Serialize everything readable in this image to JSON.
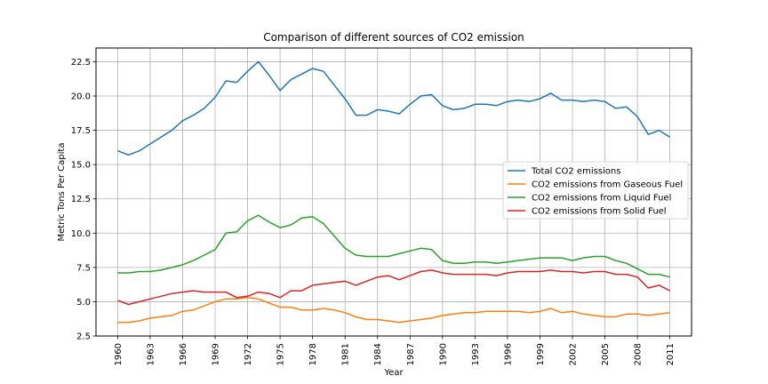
{
  "chart_data": {
    "type": "line",
    "title": "Comparison of different sources of CO2 emission",
    "xlabel": "Year",
    "ylabel": "Metric Tons Per Capita",
    "xlim": [
      1958,
      2013
    ],
    "ylim": [
      2.5,
      23.5
    ],
    "xticks": [
      1960,
      1963,
      1966,
      1969,
      1972,
      1975,
      1978,
      1981,
      1984,
      1987,
      1990,
      1993,
      1996,
      1999,
      2002,
      2005,
      2008,
      2011
    ],
    "yticks": [
      2.5,
      5.0,
      7.5,
      10.0,
      12.5,
      15.0,
      17.5,
      20.0,
      22.5
    ],
    "grid": true,
    "legend_position": "center-right",
    "x": [
      1960,
      1961,
      1962,
      1963,
      1964,
      1965,
      1966,
      1967,
      1968,
      1969,
      1970,
      1971,
      1972,
      1973,
      1974,
      1975,
      1976,
      1977,
      1978,
      1979,
      1980,
      1981,
      1982,
      1983,
      1984,
      1985,
      1986,
      1987,
      1988,
      1989,
      1990,
      1991,
      1992,
      1993,
      1994,
      1995,
      1996,
      1997,
      1998,
      1999,
      2000,
      2001,
      2002,
      2003,
      2004,
      2005,
      2006,
      2007,
      2008,
      2009,
      2010,
      2011
    ],
    "series": [
      {
        "name": "Total CO2 emissions",
        "color": "#1f77b4",
        "values": [
          16.0,
          15.7,
          16.0,
          16.5,
          17.0,
          17.5,
          18.2,
          18.6,
          19.1,
          19.9,
          21.1,
          21.0,
          21.8,
          22.5,
          21.5,
          20.4,
          21.2,
          21.6,
          22.0,
          21.8,
          20.8,
          19.8,
          18.6,
          18.6,
          19.0,
          18.9,
          18.7,
          19.4,
          20.0,
          20.1,
          19.3,
          19.0,
          19.1,
          19.4,
          19.4,
          19.3,
          19.6,
          19.7,
          19.6,
          19.8,
          20.2,
          19.7,
          19.7,
          19.6,
          19.7,
          19.6,
          19.1,
          19.2,
          18.5,
          17.2,
          17.5,
          17.0
        ]
      },
      {
        "name": "CO2 emissions from Gaseous Fuel",
        "color": "#ff7f0e",
        "values": [
          3.5,
          3.5,
          3.6,
          3.8,
          3.9,
          4.0,
          4.3,
          4.4,
          4.7,
          5.0,
          5.2,
          5.2,
          5.3,
          5.2,
          4.9,
          4.6,
          4.6,
          4.4,
          4.4,
          4.5,
          4.4,
          4.2,
          3.9,
          3.7,
          3.7,
          3.6,
          3.5,
          3.6,
          3.7,
          3.8,
          4.0,
          4.1,
          4.2,
          4.2,
          4.3,
          4.3,
          4.3,
          4.3,
          4.2,
          4.3,
          4.5,
          4.2,
          4.3,
          4.1,
          4.0,
          3.9,
          3.9,
          4.1,
          4.1,
          4.0,
          4.1,
          4.2
        ]
      },
      {
        "name": "CO2 emissions from Liquid Fuel",
        "color": "#2ca02c",
        "values": [
          7.1,
          7.1,
          7.2,
          7.2,
          7.3,
          7.5,
          7.7,
          8.0,
          8.4,
          8.8,
          10.0,
          10.1,
          10.9,
          11.3,
          10.8,
          10.4,
          10.6,
          11.1,
          11.2,
          10.7,
          9.8,
          8.9,
          8.4,
          8.3,
          8.3,
          8.3,
          8.5,
          8.7,
          8.9,
          8.8,
          8.0,
          7.8,
          7.8,
          7.9,
          7.9,
          7.8,
          7.9,
          8.0,
          8.1,
          8.2,
          8.2,
          8.2,
          8.0,
          8.2,
          8.3,
          8.3,
          8.0,
          7.8,
          7.4,
          7.0,
          7.0,
          6.8
        ]
      },
      {
        "name": "CO2 emissions from Solid Fuel",
        "color": "#d62728",
        "values": [
          5.1,
          4.8,
          5.0,
          5.2,
          5.4,
          5.6,
          5.7,
          5.8,
          5.7,
          5.7,
          5.7,
          5.3,
          5.4,
          5.7,
          5.6,
          5.3,
          5.8,
          5.8,
          6.2,
          6.3,
          6.4,
          6.5,
          6.2,
          6.5,
          6.8,
          6.9,
          6.6,
          6.9,
          7.2,
          7.3,
          7.1,
          7.0,
          7.0,
          7.0,
          7.0,
          6.9,
          7.1,
          7.2,
          7.2,
          7.2,
          7.3,
          7.2,
          7.2,
          7.1,
          7.2,
          7.2,
          7.0,
          7.0,
          6.8,
          6.0,
          6.2,
          5.8
        ]
      }
    ]
  }
}
